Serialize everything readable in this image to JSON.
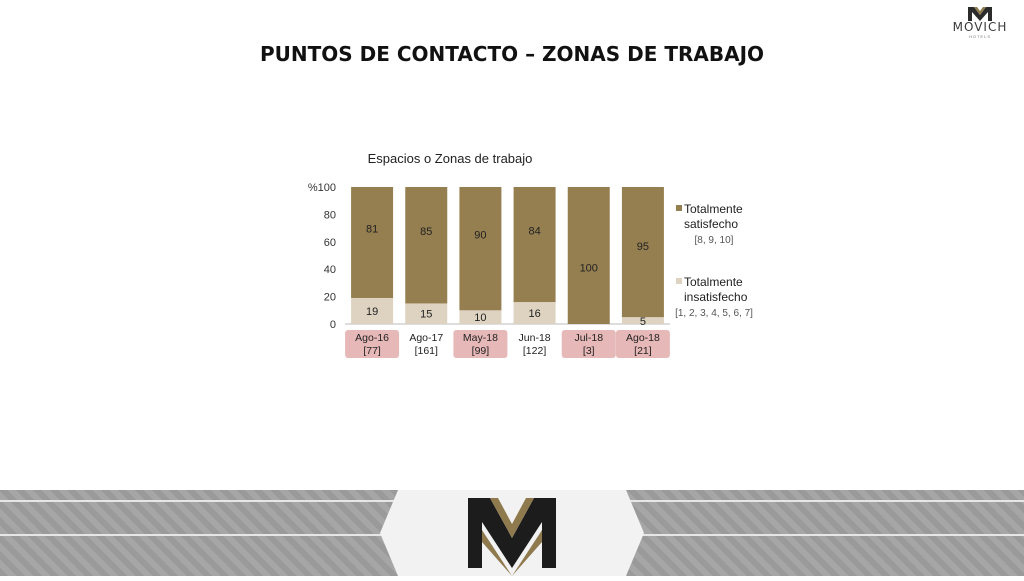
{
  "brand": {
    "name": "MOVICH",
    "sub": "HOTELS"
  },
  "slide": {
    "title": "PUNTOS DE CONTACTO – ZONAS DE TRABAJO"
  },
  "colors": {
    "satisfied": "#957f50",
    "unsatisfied": "#ddd3c0",
    "highlight": "#e7b8b8",
    "gold": "#8f7a4e",
    "dark": "#1c1c1c"
  },
  "chart_data": {
    "type": "bar",
    "stacked": true,
    "title": "Espacios o Zonas de trabajo",
    "categories": [
      "Ago-16",
      "Ago-17",
      "May-18",
      "Jun-18",
      "Jul-18",
      "Ago-18"
    ],
    "sample_sizes": [
      "[77]",
      "[161]",
      "[99]",
      "[122]",
      "[3]",
      "[21]"
    ],
    "highlighted": [
      true,
      false,
      true,
      false,
      true,
      true
    ],
    "series": [
      {
        "name": "Totalmente insatisfecho",
        "scale": "[1, 2, 3, 4, 5, 6, 7]",
        "values": [
          19,
          15,
          10,
          16,
          0,
          5
        ]
      },
      {
        "name": "Totalmente satisfecho",
        "scale": "[8, 9, 10]",
        "values": [
          81,
          85,
          90,
          84,
          100,
          95
        ]
      }
    ],
    "y_ticks": [
      "0",
      "20",
      "40",
      "60",
      "80",
      "%100"
    ],
    "ylim": [
      0,
      100
    ],
    "legend_position": "right"
  }
}
